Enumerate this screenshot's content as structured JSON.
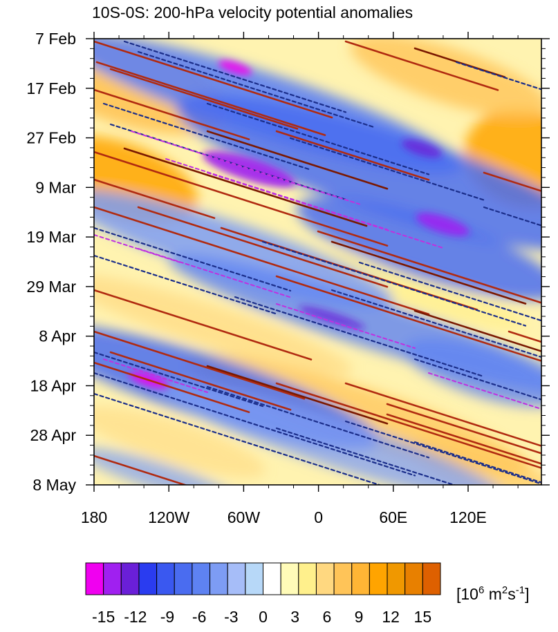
{
  "chart_data": {
    "type": "heatmap",
    "title": "10S-0S: 200-hPa velocity potential anomalies",
    "xlabel": "",
    "ylabel": "",
    "x_ticks": [
      "180",
      "120W",
      "60W",
      "0",
      "60E",
      "120E"
    ],
    "y_ticks": [
      "7 Feb",
      "17 Feb",
      "27 Feb",
      "9 Mar",
      "19 Mar",
      "29 Mar",
      "8 Apr",
      "18 Apr",
      "28 Apr",
      "8 May"
    ],
    "x_range": [
      "180",
      "180"
    ],
    "y_range": [
      "7 Feb",
      "8 May"
    ],
    "colorbar": {
      "unit_base": "[10",
      "unit_exp1": "6",
      "unit_mid": " m",
      "unit_exp2": "2",
      "unit_mid2": "s",
      "unit_exp3": "-1",
      "unit_end": "]",
      "tick_labels": [
        "-15",
        "-12",
        "-9",
        "-6",
        "-3",
        "0",
        "3",
        "6",
        "9",
        "12",
        "15"
      ],
      "levels": [
        -15,
        -12,
        -9,
        -6,
        -3,
        0,
        3,
        6,
        9,
        12,
        15
      ],
      "colors": [
        "#f000f0",
        "#a020f0",
        "#6a1fd8",
        "#2a3cf0",
        "#3a58f0",
        "#4a6cf0",
        "#5e82f2",
        "#7d9cf4",
        "#a6bdf8",
        "#b7d8f8",
        "#ffffff",
        "#fffbb8",
        "#fff08c",
        "#ffd880",
        "#ffc458",
        "#ffb535",
        "#ffa400",
        "#f09800",
        "#e88000",
        "#de6000"
      ]
    },
    "contour_styles": {
      "positive_strong": "#7a1800",
      "positive": "#b02a10",
      "negative": "#1a2d8a",
      "negative_strong": "#c030e0"
    }
  }
}
